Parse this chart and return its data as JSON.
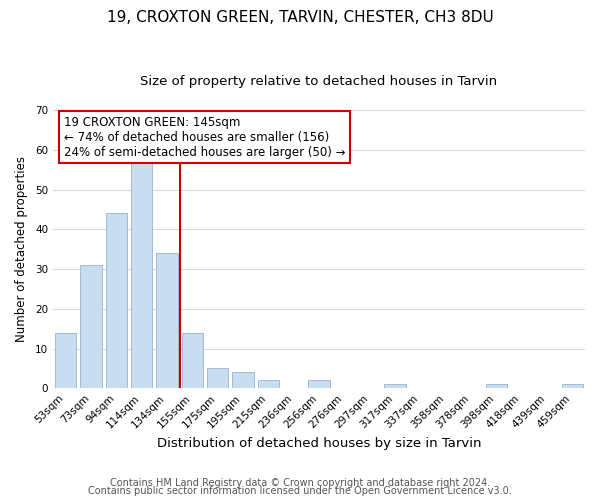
{
  "title": "19, CROXTON GREEN, TARVIN, CHESTER, CH3 8DU",
  "subtitle": "Size of property relative to detached houses in Tarvin",
  "xlabel": "Distribution of detached houses by size in Tarvin",
  "ylabel": "Number of detached properties",
  "bar_labels": [
    "53sqm",
    "73sqm",
    "94sqm",
    "114sqm",
    "134sqm",
    "155sqm",
    "175sqm",
    "195sqm",
    "215sqm",
    "236sqm",
    "256sqm",
    "276sqm",
    "297sqm",
    "317sqm",
    "337sqm",
    "358sqm",
    "378sqm",
    "398sqm",
    "418sqm",
    "439sqm",
    "459sqm"
  ],
  "bar_heights": [
    14,
    31,
    44,
    57,
    34,
    14,
    5,
    4,
    2,
    0,
    2,
    0,
    0,
    1,
    0,
    0,
    0,
    1,
    0,
    0,
    1
  ],
  "bar_color": "#c9ddf0",
  "bar_edge_color": "#a0bcd8",
  "vline_x": 4.5,
  "vline_color": "#cc0000",
  "annotation_line1": "19 CROXTON GREEN: 145sqm",
  "annotation_line2": "← 74% of detached houses are smaller (156)",
  "annotation_line3": "24% of semi-detached houses are larger (50) →",
  "annotation_box_facecolor": "white",
  "annotation_box_edgecolor": "#cc0000",
  "ylim": [
    0,
    70
  ],
  "yticks": [
    0,
    10,
    20,
    30,
    40,
    50,
    60,
    70
  ],
  "footer_line1": "Contains HM Land Registry data © Crown copyright and database right 2024.",
  "footer_line2": "Contains public sector information licensed under the Open Government Licence v3.0.",
  "title_fontsize": 11,
  "subtitle_fontsize": 9.5,
  "xlabel_fontsize": 9.5,
  "ylabel_fontsize": 8.5,
  "tick_fontsize": 7.5,
  "annotation_fontsize": 8.5,
  "footer_fontsize": 7
}
